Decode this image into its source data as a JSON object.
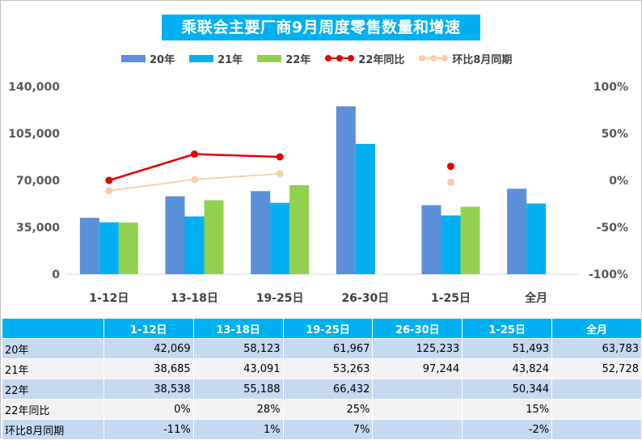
{
  "title": "乘联会主要厂商9月周度零售数量和增速",
  "legend": [
    {
      "label": "20年",
      "kind": "bar",
      "color": "#5b8fd8"
    },
    {
      "label": "21年",
      "kind": "bar",
      "color": "#00b0f0"
    },
    {
      "label": "22年",
      "kind": "bar",
      "color": "#92d050"
    },
    {
      "label": "22年同比",
      "kind": "line",
      "color": "#e00000"
    },
    {
      "label": "环比8月同期",
      "kind": "line",
      "color": "#f8cbad"
    }
  ],
  "chart_data": {
    "type": "bar",
    "title": "乘联会主要厂商9月周度零售数量和增速",
    "categories": [
      "1-12日",
      "13-18日",
      "19-25日",
      "26-30日",
      "1-25日",
      "全月"
    ],
    "series": [
      {
        "name": "20年",
        "type": "bar",
        "axis": "left",
        "color": "#5b8fd8",
        "values": [
          42069,
          58123,
          61967,
          125233,
          51493,
          63783
        ]
      },
      {
        "name": "21年",
        "type": "bar",
        "axis": "left",
        "color": "#00b0f0",
        "values": [
          38685,
          43091,
          53263,
          97244,
          43824,
          52728
        ]
      },
      {
        "name": "22年",
        "type": "bar",
        "axis": "left",
        "color": "#92d050",
        "values": [
          38538,
          55188,
          66432,
          null,
          50344,
          null
        ]
      },
      {
        "name": "22年同比",
        "type": "line",
        "axis": "right",
        "color": "#e00000",
        "values": [
          0,
          28,
          25,
          null,
          15,
          null
        ]
      },
      {
        "name": "环比8月同期",
        "type": "line",
        "axis": "right",
        "color": "#f8cbad",
        "values": [
          -11,
          1,
          7,
          null,
          -2,
          null
        ]
      }
    ],
    "y_left": {
      "min": 0,
      "max": 140000,
      "ticks": [
        0,
        35000,
        70000,
        105000,
        140000
      ],
      "tick_labels": [
        "0",
        "35,000",
        "70,000",
        "105,000",
        "140,000"
      ]
    },
    "y_right": {
      "min": -100,
      "max": 100,
      "ticks": [
        -100,
        -50,
        0,
        50,
        100
      ],
      "tick_labels": [
        "-100%",
        "-50%",
        "0%",
        "50%",
        "100%"
      ]
    },
    "legend_position": "top",
    "grid": false
  },
  "table": {
    "headers": [
      "",
      "1-12日",
      "13-18日",
      "19-25日",
      "26-30日",
      "1-25日",
      "全月"
    ],
    "rows": [
      [
        "20年",
        "42,069",
        "58,123",
        "61,967",
        "125,233",
        "51,493",
        "63,783"
      ],
      [
        "21年",
        "38,685",
        "43,091",
        "53,263",
        "97,244",
        "43,824",
        "52,728"
      ],
      [
        "22年",
        "38,538",
        "55,188",
        "66,432",
        "",
        "50,344",
        ""
      ],
      [
        "22年同比",
        "0%",
        "28%",
        "25%",
        "",
        "15%",
        ""
      ],
      [
        "环比8月同期",
        "-11%",
        "1%",
        "7%",
        "",
        "-2%",
        ""
      ]
    ]
  }
}
